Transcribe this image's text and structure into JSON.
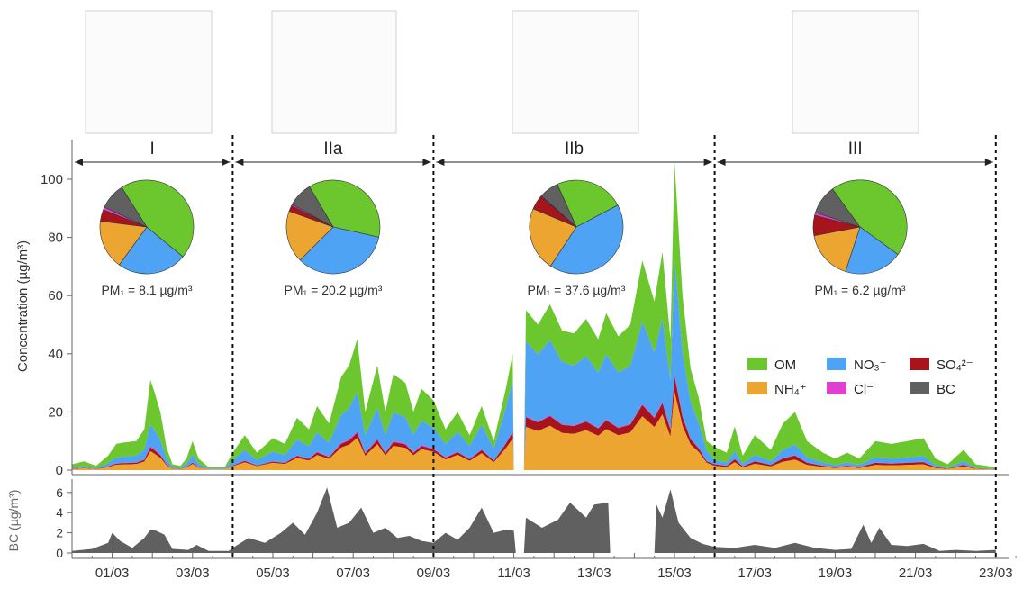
{
  "colors": {
    "OM": "#6cc62e",
    "NH4": "#eba530",
    "NO3": "#4fa3f5",
    "Cl": "#e040d0",
    "SO4": "#a8141c",
    "BC": "#606060"
  },
  "chart_data": [
    {
      "type": "area",
      "ylabel": "Concentration (µg/m³)",
      "ylim": [
        0,
        110
      ],
      "yticks": [
        "0",
        "20",
        "40",
        "60",
        "80",
        "100"
      ],
      "x_start": "2015-02-28",
      "xticks": [
        "01/03",
        "03/03",
        "05/03",
        "07/03",
        "09/03",
        "11/03",
        "13/03",
        "15/03",
        "17/03",
        "19/03",
        "21/03",
        "23/03"
      ],
      "x_days": [
        1,
        3,
        5,
        7,
        9,
        11,
        13,
        15,
        17,
        19,
        21,
        23
      ],
      "periods": [
        {
          "label": "I",
          "start_day": 0,
          "end_day": 4,
          "pm1": "PM₁ = 8.1 µg/m³",
          "pie": {
            "OM": 45,
            "NO3": 24,
            "NH4": 17,
            "SO4": 4,
            "Cl": 1,
            "BC": 9
          }
        },
        {
          "label": "IIa",
          "start_day": 4,
          "end_day": 9,
          "pm1": "PM₁ = 20.2 µg/m³",
          "pie": {
            "OM": 37,
            "NO3": 34,
            "NH4": 18,
            "SO4": 2,
            "Cl": 0.5,
            "BC": 8.5
          }
        },
        {
          "label": "IIb",
          "start_day": 9,
          "end_day": 16,
          "pm1": "PM₁ = 37.6 µg/m³",
          "pie": {
            "OM": 24,
            "NO3": 42,
            "NH4": 22,
            "SO4": 5,
            "Cl": 0.3,
            "BC": 6.7
          }
        },
        {
          "label": "III",
          "start_day": 16,
          "end_day": 23,
          "pm1": "PM₁ = 6.2 µg/m³",
          "pie": {
            "OM": 45,
            "NO3": 20,
            "NH4": 17,
            "SO4": 7,
            "Cl": 1,
            "BC": 10
          }
        }
      ],
      "legend": [
        {
          "key": "OM",
          "label": "OM"
        },
        {
          "key": "NO3",
          "label": "NO₃⁻"
        },
        {
          "key": "SO4",
          "label": "SO₄²⁻"
        },
        {
          "key": "NH4",
          "label": "NH₄⁺"
        },
        {
          "key": "Cl",
          "label": "Cl⁻"
        },
        {
          "key": "BC",
          "label": "BC"
        }
      ],
      "series_total_points": [
        [
          0,
          2
        ],
        [
          0.3,
          3
        ],
        [
          0.6,
          1.5
        ],
        [
          0.9,
          5
        ],
        [
          1.1,
          9
        ],
        [
          1.3,
          9.5
        ],
        [
          1.6,
          10
        ],
        [
          1.8,
          14
        ],
        [
          1.95,
          31
        ],
        [
          2.05,
          27
        ],
        [
          2.2,
          20
        ],
        [
          2.35,
          8
        ],
        [
          2.5,
          2
        ],
        [
          2.7,
          1.5
        ],
        [
          2.85,
          4
        ],
        [
          3.0,
          10
        ],
        [
          3.15,
          4
        ],
        [
          3.4,
          1
        ],
        [
          3.8,
          1
        ],
        [
          4.0,
          6
        ],
        [
          4.3,
          12
        ],
        [
          4.6,
          6
        ],
        [
          5.0,
          11
        ],
        [
          5.3,
          9
        ],
        [
          5.6,
          18
        ],
        [
          5.9,
          14
        ],
        [
          6.1,
          22
        ],
        [
          6.4,
          16
        ],
        [
          6.7,
          32
        ],
        [
          6.9,
          36
        ],
        [
          7.1,
          45
        ],
        [
          7.3,
          20
        ],
        [
          7.6,
          36
        ],
        [
          7.8,
          20
        ],
        [
          8.0,
          33
        ],
        [
          8.3,
          30
        ],
        [
          8.5,
          20
        ],
        [
          8.7,
          28
        ],
        [
          9.0,
          24
        ],
        [
          9.3,
          14
        ],
        [
          9.6,
          20
        ],
        [
          9.9,
          12
        ],
        [
          10.2,
          22
        ],
        [
          10.5,
          10
        ],
        [
          10.8,
          28
        ],
        [
          10.97,
          40
        ],
        [
          11.0,
          0
        ],
        [
          11.25,
          0
        ],
        [
          11.3,
          55
        ],
        [
          11.6,
          50
        ],
        [
          11.9,
          57
        ],
        [
          12.2,
          48
        ],
        [
          12.5,
          47
        ],
        [
          12.8,
          52
        ],
        [
          13.1,
          45
        ],
        [
          13.3,
          54
        ],
        [
          13.6,
          46
        ],
        [
          13.9,
          50
        ],
        [
          14.2,
          72
        ],
        [
          14.5,
          58
        ],
        [
          14.7,
          75
        ],
        [
          14.9,
          45
        ],
        [
          15.0,
          106
        ],
        [
          15.2,
          60
        ],
        [
          15.4,
          35
        ],
        [
          15.6,
          25
        ],
        [
          15.8,
          10
        ],
        [
          16.0,
          8
        ],
        [
          16.3,
          6
        ],
        [
          16.5,
          15
        ],
        [
          16.7,
          5
        ],
        [
          17.0,
          12
        ],
        [
          17.4,
          7
        ],
        [
          17.7,
          16
        ],
        [
          18.0,
          20
        ],
        [
          18.3,
          10
        ],
        [
          18.7,
          6
        ],
        [
          19.0,
          4
        ],
        [
          19.3,
          6
        ],
        [
          19.6,
          4
        ],
        [
          20.0,
          10
        ],
        [
          20.4,
          9
        ],
        [
          20.8,
          10
        ],
        [
          21.2,
          11
        ],
        [
          21.5,
          4
        ],
        [
          21.8,
          2
        ],
        [
          22.2,
          7
        ],
        [
          22.5,
          2
        ],
        [
          23.0,
          1
        ]
      ],
      "component_fractions": [
        {
          "day": 0,
          "NH4": 0.2,
          "SO4": 0.05,
          "Cl": 0.01,
          "NO3": 0.19
        },
        {
          "day": 4,
          "NH4": 0.22,
          "SO4": 0.04,
          "Cl": 0.01,
          "NO3": 0.3
        },
        {
          "day": 9,
          "NH4": 0.26,
          "SO4": 0.04,
          "Cl": 0.01,
          "NO3": 0.3
        },
        {
          "day": 11.3,
          "NH4": 0.27,
          "SO4": 0.06,
          "Cl": 0.005,
          "NO3": 0.47
        },
        {
          "day": 15.8,
          "NH4": 0.25,
          "SO4": 0.05,
          "Cl": 0.005,
          "NO3": 0.35
        },
        {
          "day": 16,
          "NH4": 0.18,
          "SO4": 0.07,
          "Cl": 0.01,
          "NO3": 0.18
        },
        {
          "day": 23,
          "NH4": 0.18,
          "SO4": 0.07,
          "Cl": 0.01,
          "NO3": 0.18
        }
      ]
    },
    {
      "type": "area",
      "ylabel": "BC (µg/m³)",
      "ylim": [
        0,
        7
      ],
      "yticks": [
        "0",
        "2",
        "4",
        "6"
      ],
      "series_points": [
        [
          0,
          0.2
        ],
        [
          0.5,
          0.4
        ],
        [
          0.9,
          1.0
        ],
        [
          1.0,
          2.0
        ],
        [
          1.2,
          1.2
        ],
        [
          1.5,
          0.5
        ],
        [
          1.8,
          1.5
        ],
        [
          1.95,
          2.3
        ],
        [
          2.1,
          2.2
        ],
        [
          2.3,
          1.8
        ],
        [
          2.5,
          0.4
        ],
        [
          2.9,
          0.3
        ],
        [
          3.1,
          0.8
        ],
        [
          3.4,
          0.2
        ],
        [
          3.9,
          0.2
        ],
        [
          4.0,
          0.5
        ],
        [
          4.4,
          1.5
        ],
        [
          4.8,
          1.0
        ],
        [
          5.2,
          2.0
        ],
        [
          5.5,
          3.0
        ],
        [
          5.8,
          1.8
        ],
        [
          6.1,
          4.0
        ],
        [
          6.35,
          6.5
        ],
        [
          6.6,
          2.5
        ],
        [
          6.9,
          3.0
        ],
        [
          7.2,
          4.5
        ],
        [
          7.5,
          2.0
        ],
        [
          7.8,
          2.5
        ],
        [
          8.1,
          1.5
        ],
        [
          8.4,
          1.7
        ],
        [
          8.7,
          1.2
        ],
        [
          9.0,
          1.0
        ],
        [
          9.3,
          2.0
        ],
        [
          9.6,
          1.3
        ],
        [
          9.9,
          2.5
        ],
        [
          10.2,
          4.5
        ],
        [
          10.5,
          2.0
        ],
        [
          10.8,
          2.3
        ],
        [
          11.0,
          2.2
        ],
        [
          11.05,
          0
        ],
        [
          11.25,
          0
        ],
        [
          11.3,
          3.5
        ],
        [
          11.7,
          2.5
        ],
        [
          12.1,
          3.3
        ],
        [
          12.4,
          5.0
        ],
        [
          12.8,
          3.5
        ],
        [
          13.0,
          4.8
        ],
        [
          13.35,
          5.0
        ],
        [
          13.4,
          0
        ],
        [
          14.5,
          0
        ],
        [
          14.55,
          4.8
        ],
        [
          14.7,
          3.5
        ],
        [
          14.9,
          6.3
        ],
        [
          15.1,
          3.0
        ],
        [
          15.4,
          1.5
        ],
        [
          15.7,
          0.9
        ],
        [
          16.0,
          0.6
        ],
        [
          16.5,
          0.5
        ],
        [
          17.0,
          0.8
        ],
        [
          17.5,
          0.5
        ],
        [
          18.0,
          1.0
        ],
        [
          18.5,
          0.5
        ],
        [
          19.0,
          0.3
        ],
        [
          19.4,
          0.4
        ],
        [
          19.7,
          2.8
        ],
        [
          19.9,
          1.0
        ],
        [
          20.1,
          2.5
        ],
        [
          20.4,
          0.8
        ],
        [
          20.8,
          0.7
        ],
        [
          21.2,
          0.9
        ],
        [
          21.6,
          0.2
        ],
        [
          22.0,
          0.3
        ],
        [
          22.5,
          0.2
        ],
        [
          23.0,
          0.3
        ]
      ]
    }
  ]
}
